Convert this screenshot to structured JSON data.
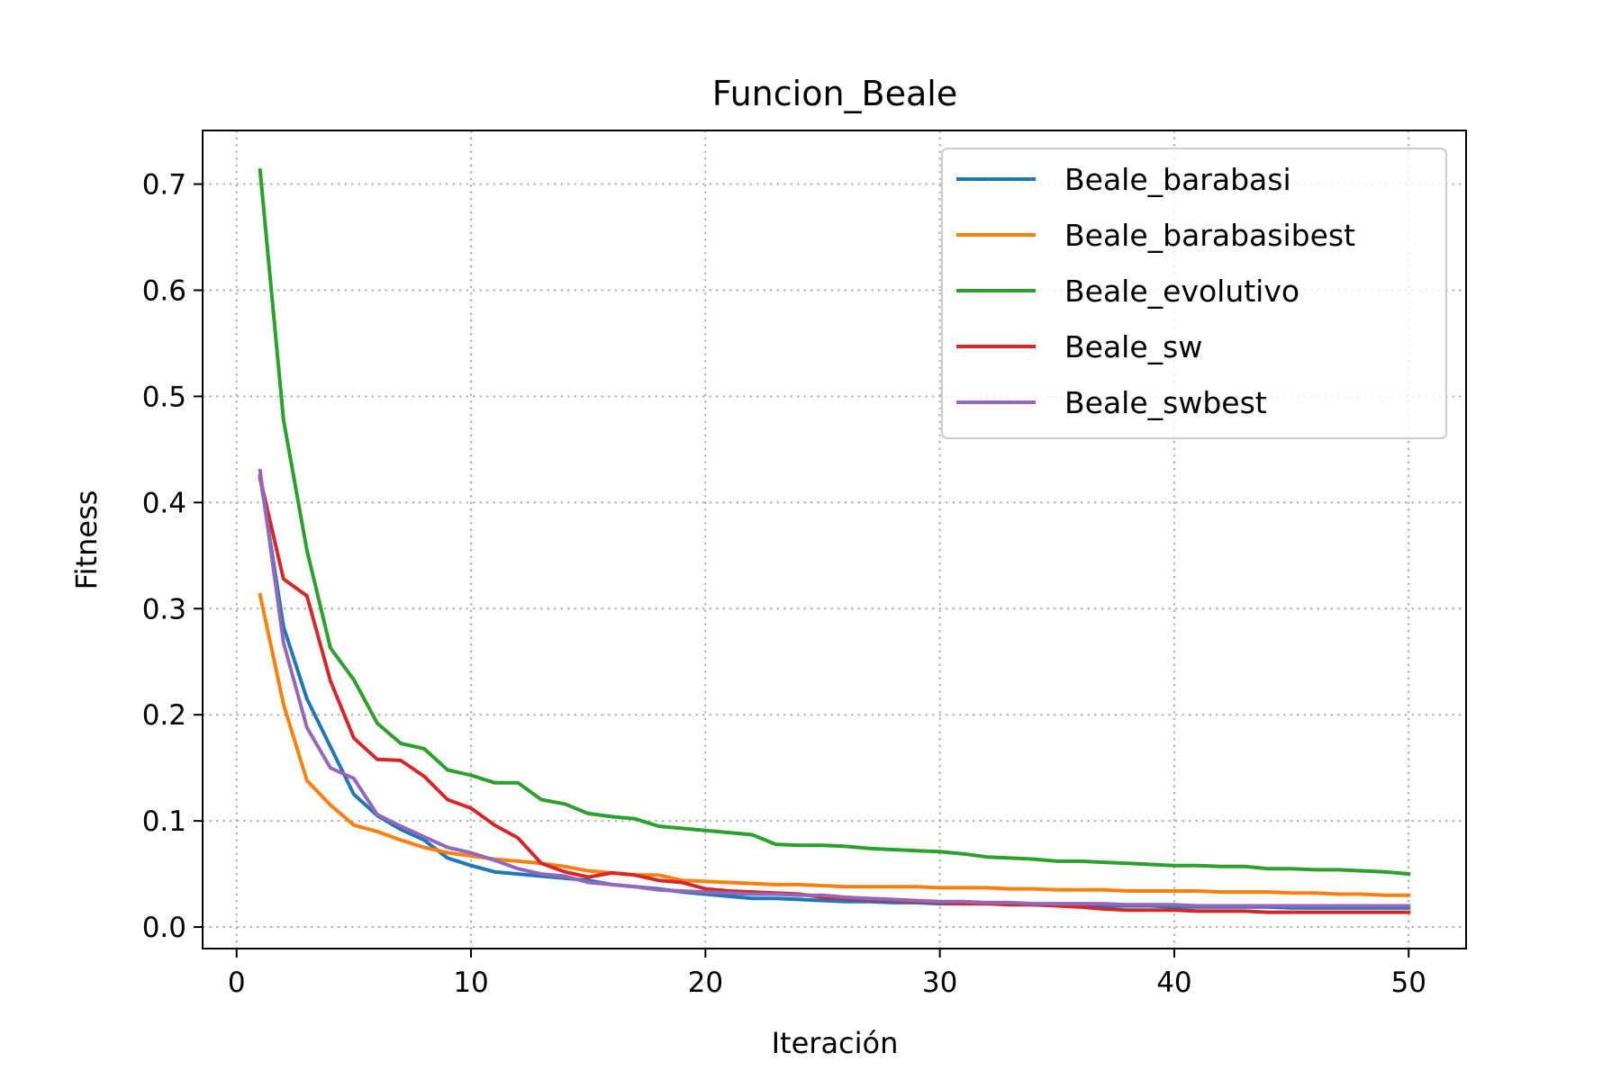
{
  "chart_data": {
    "type": "line",
    "title": "Funcion_Beale",
    "xlabel": "Iteración",
    "ylabel": "Fitness",
    "xlim": [
      -1.45,
      52.45
    ],
    "ylim": [
      -0.0203,
      0.7505
    ],
    "xticks": [
      0,
      10,
      20,
      30,
      40,
      50
    ],
    "yticks": [
      0.0,
      0.1,
      0.2,
      0.3,
      0.4,
      0.5,
      0.6,
      0.7
    ],
    "ytick_labels": [
      "0.0",
      "0.1",
      "0.2",
      "0.3",
      "0.4",
      "0.5",
      "0.6",
      "0.7"
    ],
    "xtick_labels": [
      "0",
      "10",
      "20",
      "30",
      "40",
      "50"
    ],
    "grid": true,
    "legend_position": "top-right",
    "x": [
      1,
      2,
      3,
      4,
      5,
      6,
      7,
      8,
      9,
      10,
      11,
      12,
      13,
      14,
      15,
      16,
      17,
      18,
      19,
      20,
      21,
      22,
      23,
      24,
      25,
      26,
      27,
      28,
      29,
      30,
      31,
      32,
      33,
      34,
      35,
      36,
      37,
      38,
      39,
      40,
      41,
      42,
      43,
      44,
      45,
      46,
      47,
      48,
      49,
      50
    ],
    "series": [
      {
        "name": "Beale_barabasi",
        "color": "#1f77b4",
        "values": [
          0.425,
          0.283,
          0.215,
          0.17,
          0.125,
          0.105,
          0.092,
          0.082,
          0.065,
          0.058,
          0.052,
          0.05,
          0.048,
          0.046,
          0.044,
          0.04,
          0.038,
          0.036,
          0.033,
          0.031,
          0.029,
          0.027,
          0.027,
          0.026,
          0.025,
          0.024,
          0.024,
          0.023,
          0.023,
          0.022,
          0.022,
          0.022,
          0.022,
          0.021,
          0.021,
          0.021,
          0.02,
          0.02,
          0.02,
          0.019,
          0.019,
          0.019,
          0.019,
          0.019,
          0.018,
          0.018,
          0.018,
          0.018,
          0.018,
          0.018
        ]
      },
      {
        "name": "Beale_barabasibest",
        "color": "#ff7f0e",
        "values": [
          0.313,
          0.21,
          0.138,
          0.115,
          0.096,
          0.09,
          0.082,
          0.075,
          0.07,
          0.067,
          0.064,
          0.062,
          0.06,
          0.057,
          0.053,
          0.051,
          0.049,
          0.049,
          0.044,
          0.043,
          0.042,
          0.041,
          0.04,
          0.04,
          0.039,
          0.038,
          0.038,
          0.038,
          0.038,
          0.037,
          0.037,
          0.037,
          0.036,
          0.036,
          0.035,
          0.035,
          0.035,
          0.034,
          0.034,
          0.034,
          0.034,
          0.033,
          0.033,
          0.033,
          0.032,
          0.032,
          0.031,
          0.031,
          0.03,
          0.03
        ]
      },
      {
        "name": "Beale_evolutivo",
        "color": "#2ca02c",
        "values": [
          0.713,
          0.478,
          0.355,
          0.263,
          0.233,
          0.192,
          0.173,
          0.168,
          0.148,
          0.143,
          0.136,
          0.136,
          0.12,
          0.116,
          0.107,
          0.104,
          0.102,
          0.095,
          0.093,
          0.091,
          0.089,
          0.087,
          0.078,
          0.077,
          0.077,
          0.076,
          0.074,
          0.073,
          0.072,
          0.071,
          0.069,
          0.066,
          0.065,
          0.064,
          0.062,
          0.062,
          0.061,
          0.06,
          0.059,
          0.058,
          0.058,
          0.057,
          0.057,
          0.055,
          0.055,
          0.054,
          0.054,
          0.053,
          0.052,
          0.05
        ]
      },
      {
        "name": "Beale_sw",
        "color": "#d62728",
        "values": [
          0.423,
          0.328,
          0.312,
          0.232,
          0.178,
          0.158,
          0.157,
          0.142,
          0.12,
          0.112,
          0.096,
          0.084,
          0.06,
          0.052,
          0.047,
          0.051,
          0.049,
          0.044,
          0.042,
          0.036,
          0.034,
          0.033,
          0.032,
          0.031,
          0.028,
          0.027,
          0.026,
          0.025,
          0.024,
          0.023,
          0.022,
          0.022,
          0.021,
          0.021,
          0.02,
          0.019,
          0.017,
          0.016,
          0.016,
          0.016,
          0.015,
          0.015,
          0.015,
          0.014,
          0.014,
          0.014,
          0.014,
          0.014,
          0.014,
          0.014
        ]
      },
      {
        "name": "Beale_swbest",
        "color": "#9467bd",
        "values": [
          0.43,
          0.268,
          0.188,
          0.15,
          0.14,
          0.106,
          0.095,
          0.085,
          0.075,
          0.07,
          0.063,
          0.055,
          0.05,
          0.048,
          0.042,
          0.04,
          0.038,
          0.035,
          0.034,
          0.033,
          0.032,
          0.031,
          0.031,
          0.03,
          0.03,
          0.028,
          0.027,
          0.026,
          0.025,
          0.024,
          0.024,
          0.023,
          0.023,
          0.022,
          0.022,
          0.022,
          0.022,
          0.021,
          0.021,
          0.021,
          0.02,
          0.02,
          0.02,
          0.02,
          0.02,
          0.02,
          0.02,
          0.02,
          0.02,
          0.02
        ]
      }
    ]
  }
}
